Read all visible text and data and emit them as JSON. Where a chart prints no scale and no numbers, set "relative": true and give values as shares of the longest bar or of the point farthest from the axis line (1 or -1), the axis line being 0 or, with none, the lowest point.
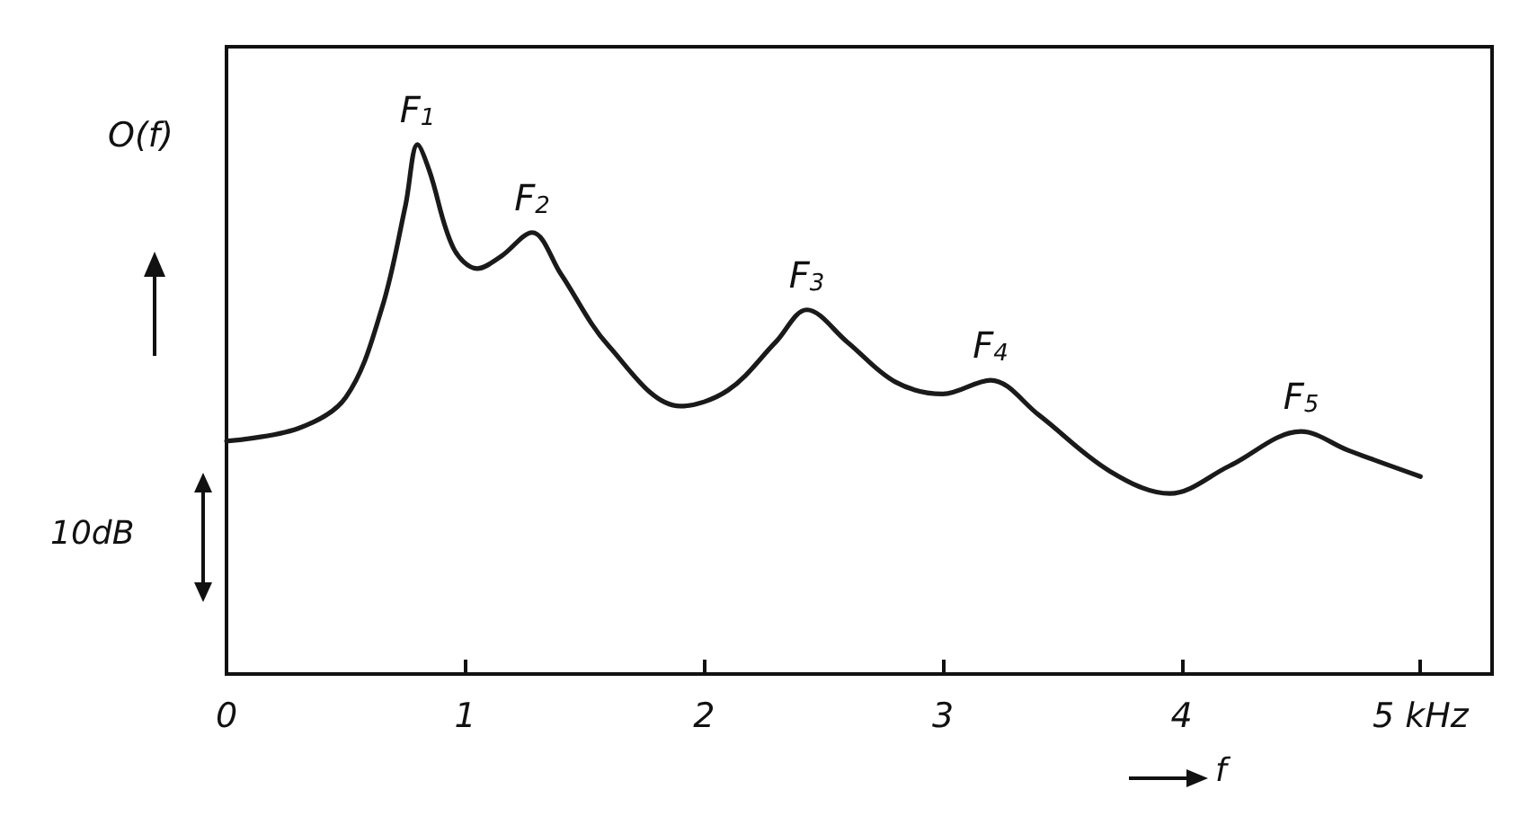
{
  "chart_data": {
    "type": "line",
    "relative": true,
    "xlabel": "f",
    "ylabel": "O(f)",
    "x": [
      0,
      0.3,
      0.5,
      0.65,
      0.75,
      0.8,
      0.85,
      0.95,
      1.05,
      1.15,
      1.28,
      1.4,
      1.6,
      1.9,
      2.1,
      2.3,
      2.43,
      2.6,
      2.8,
      3.0,
      3.2,
      3.4,
      3.7,
      3.95,
      4.2,
      4.5,
      4.7,
      5.0
    ],
    "series": [
      {
        "color": "#1a1a1a",
        "values": [
          0.44,
          0.464,
          0.523,
          0.69,
          0.886,
          1.0,
          0.95,
          0.805,
          0.766,
          0.789,
          0.834,
          0.756,
          0.62,
          0.506,
          0.536,
          0.627,
          0.688,
          0.627,
          0.552,
          0.529,
          0.555,
          0.49,
          0.383,
          0.341,
          0.393,
          0.458,
          0.422,
          0.373
        ]
      }
    ],
    "xlim": [
      0,
      5.3
    ],
    "xticks": [
      0,
      1,
      2,
      3,
      4,
      {
        "value": 5,
        "label": "5 kHz"
      }
    ],
    "marker": "none",
    "line_style": "solid",
    "annotations": [
      {
        "text": "F$_{1}$",
        "x": 0.8,
        "y": 1.0
      },
      {
        "text": "F$_{2}$",
        "x": 1.28,
        "y": 0.834
      },
      {
        "text": "F$_{3}$",
        "x": 2.43,
        "y": 0.688
      },
      {
        "text": "F$_{4}$",
        "x": 3.2,
        "y": 0.555
      },
      {
        "text": "F$_{5}$",
        "x": 4.5,
        "y": 0.458
      },
      "10dB"
    ]
  }
}
